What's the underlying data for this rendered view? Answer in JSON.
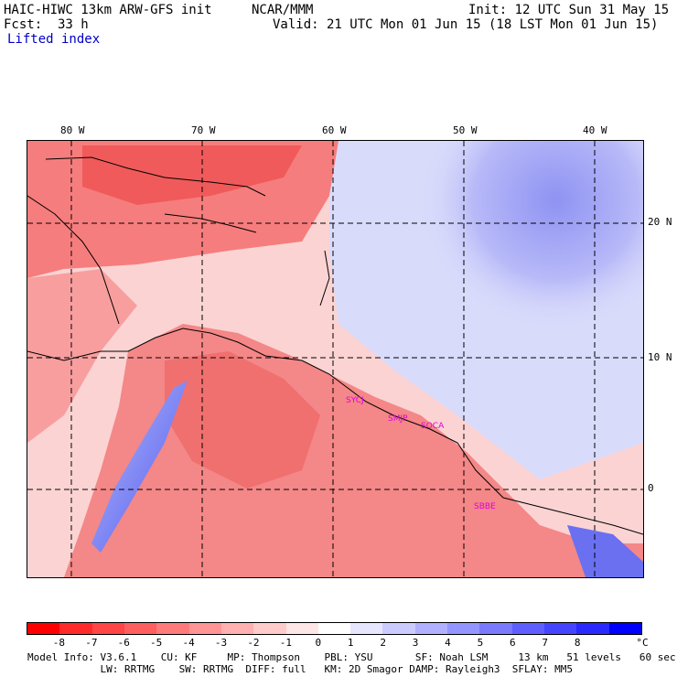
{
  "header": {
    "model": "HAIC-HIWC 13km ARW-GFS init",
    "org": "NCAR/MMM",
    "init": "Init: 12 UTC Sun 31 May 15",
    "fcst_label": "Fcst:",
    "fcst_value": "33 h",
    "valid": "Valid: 21 UTC Mon 01 Jun 15 (18 LST Mon 01 Jun 15)",
    "field": "Lifted index"
  },
  "lon_labels": [
    "80 W",
    "70 W",
    "60 W",
    "50 W",
    "40 W"
  ],
  "lat_labels": [
    "20 N",
    "10 N",
    "0"
  ],
  "stations": [
    "SYCJ",
    "SMJP",
    "SOCA",
    "SBBE"
  ],
  "colorbar": {
    "unit": "°C",
    "ticks": [
      "-8",
      "-7",
      "-6",
      "-5",
      "-4",
      "-3",
      "-2",
      "-1",
      "0",
      "1",
      "2",
      "3",
      "4",
      "5",
      "6",
      "7",
      "8"
    ],
    "colors": [
      "#ff0000",
      "#ff2a2a",
      "#ff4545",
      "#ff5f5f",
      "#ff7a7a",
      "#ff9595",
      "#ffb0b0",
      "#ffcbcb",
      "#ffe6e6",
      "#ffffff",
      "#e6e6ff",
      "#cbcbff",
      "#b0b0ff",
      "#9595ff",
      "#7a7aff",
      "#5f5fff",
      "#4545ff",
      "#2a2aff",
      "#0000ff"
    ]
  },
  "footer": {
    "line1": "Model Info: V3.6.1    CU: KF     MP: Thompson    PBL: YSU       SF: Noah LSM     13 km   51 levels   60 sec",
    "line2": "            LW: RRTMG    SW: RRTMG  DIFF: full   KM: 2D Smagor DAMP: Rayleigh3  SFLAY: MM5"
  }
}
